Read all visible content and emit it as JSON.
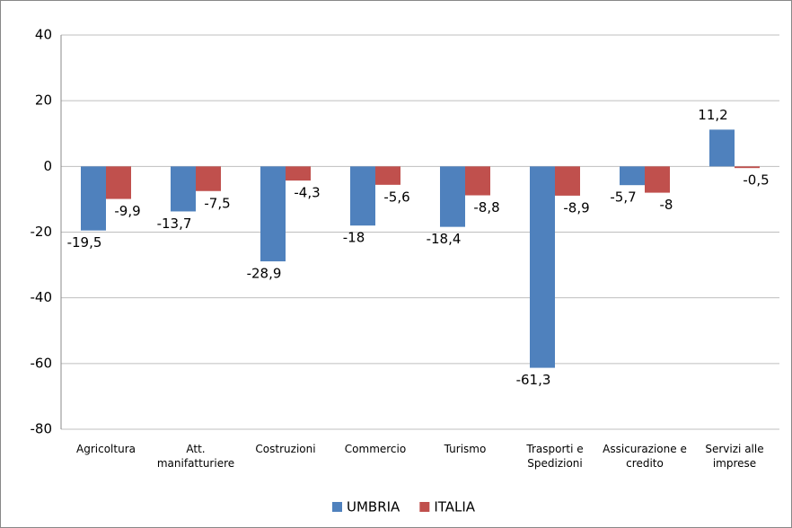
{
  "chart_data": {
    "type": "bar",
    "categories": [
      "Agricoltura",
      "Att. manifatturiere",
      "Costruzioni",
      "Commercio",
      "Turismo",
      "Trasporti e Spedizioni",
      "Assicurazione e credito",
      "Servizi alle imprese"
    ],
    "series": [
      {
        "name": "UMBRIA",
        "color": "#4f81bd",
        "values": [
          -19.5,
          -13.7,
          -28.9,
          -18,
          -18.4,
          -61.3,
          -5.7,
          11.2
        ],
        "value_labels": [
          "-19,5",
          "-13,7",
          "-28,9",
          "-18",
          "-18,4",
          "-61,3",
          "-5,7",
          "11,2"
        ]
      },
      {
        "name": "ITALIA",
        "color": "#c0504d",
        "values": [
          -9.9,
          -7.5,
          -4.3,
          -5.6,
          -8.8,
          -8.9,
          -8,
          -0.5
        ],
        "value_labels": [
          "-9,9",
          "-7,5",
          "-4,3",
          "-5,6",
          "-8,8",
          "-8,9",
          "-8",
          "-0,5"
        ]
      }
    ],
    "ylim": [
      -80,
      40
    ],
    "yticks": [
      -80,
      -60,
      -40,
      -20,
      0,
      20,
      40
    ],
    "grid": true,
    "legend": "bottom"
  }
}
